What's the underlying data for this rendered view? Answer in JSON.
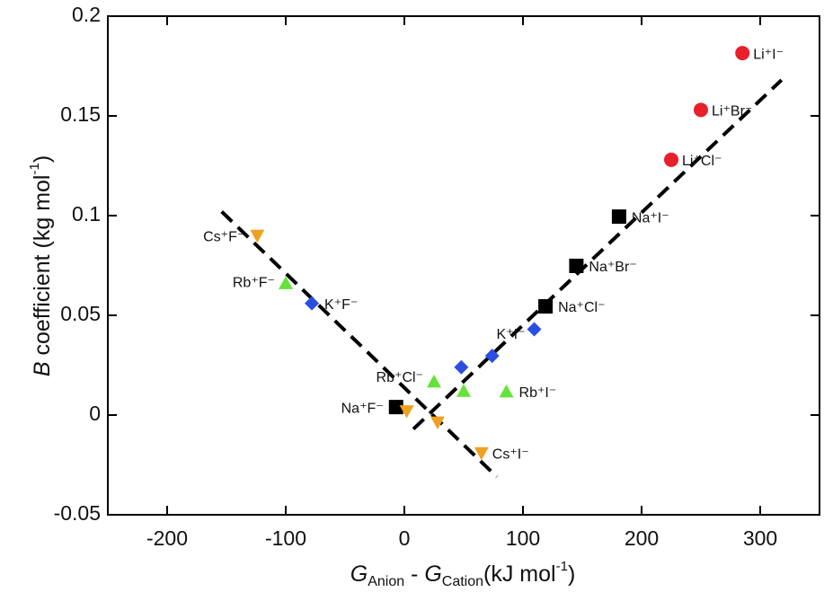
{
  "chart_data": {
    "type": "scatter",
    "y_label": [
      "B",
      " coefficient (kg mol",
      "-1",
      ")"
    ],
    "x_label": [
      "G",
      "Anion",
      " - ",
      "G",
      "Cation",
      "(kJ mol",
      "-1",
      ")"
    ],
    "xlim": [
      -250,
      350
    ],
    "ylim": [
      -0.05,
      0.2
    ],
    "xticks": [
      -200,
      -100,
      0,
      100,
      200,
      300
    ],
    "yticks": [
      -0.05,
      0,
      0.05,
      0.1,
      0.15,
      0.2
    ],
    "series": [
      {
        "name": "Li",
        "color": "#e8202a",
        "marker": "circle",
        "x": [
          285,
          250,
          225
        ],
        "values": [
          0.1815,
          0.153,
          0.128
        ],
        "labels": [
          "Li⁺I⁻",
          "Li⁺Br⁻",
          "Li⁺Cl⁻"
        ]
      },
      {
        "name": "Na",
        "color": "#000000",
        "marker": "square",
        "x": [
          181,
          145,
          119,
          -7
        ],
        "values": [
          0.0995,
          0.0748,
          0.0545,
          0.004
        ],
        "labels": [
          "Na⁺I⁻",
          "Na⁺Br⁻",
          "Na⁺Cl⁻",
          "Na⁺F⁻"
        ]
      },
      {
        "name": "K",
        "color": "#2a4fe0",
        "marker": "diamond",
        "x": [
          109.5,
          74,
          48,
          -78
        ],
        "values": [
          0.043,
          0.0297,
          0.024,
          0.056
        ],
        "labels": [
          "K⁺I⁻",
          null,
          null,
          "K⁺F⁻"
        ]
      },
      {
        "name": "Rb",
        "color": "#66e23a",
        "marker": "triangle",
        "x": [
          -100,
          25,
          50,
          86
        ],
        "values": [
          0.066,
          0.0167,
          0.012,
          0.0117
        ],
        "labels": [
          "Rb⁺F⁻",
          "Rb⁺Cl⁻",
          null,
          "Rb⁺I⁻"
        ]
      },
      {
        "name": "Cs",
        "color": "#f0a020",
        "marker": "triangle-down",
        "x": [
          -124,
          2,
          28,
          65
        ],
        "values": [
          0.09,
          0.002,
          -0.0036,
          -0.019
        ],
        "labels": [
          "Cs⁺F⁻",
          null,
          null,
          "Cs⁺I⁻"
        ]
      }
    ],
    "fit_lines": [
      {
        "x": [
          -154,
          78
        ],
        "values": [
          0.102,
          -0.031
        ]
      },
      {
        "x": [
          7.6,
          318
        ],
        "values": [
          -0.007,
          0.168
        ]
      }
    ]
  }
}
